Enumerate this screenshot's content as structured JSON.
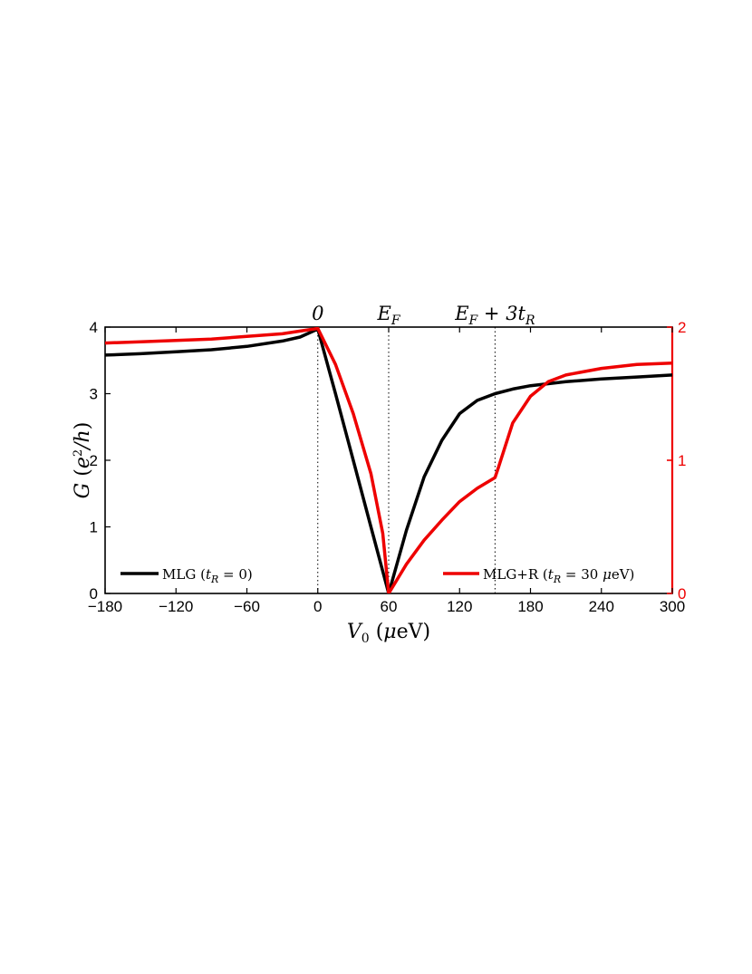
{
  "chart_data": {
    "type": "line",
    "xlabel": "V₀ (μeV)",
    "ylabel_left": "G (e²/h)",
    "xlim": [
      -180,
      300
    ],
    "ylim_left": [
      0,
      4
    ],
    "ylim_right": [
      0,
      2
    ],
    "x_ticks": [
      -180,
      -120,
      -60,
      0,
      60,
      120,
      180,
      240,
      300
    ],
    "x_tick_labels": [
      "−180",
      "−120",
      "−60",
      "0",
      "60",
      "120",
      "180",
      "240",
      "300"
    ],
    "y_left_ticks": [
      0,
      1,
      2,
      3,
      4
    ],
    "y_left_tick_labels": [
      "0",
      "1",
      "2",
      "3",
      "4"
    ],
    "y_right_ticks": [
      0,
      1,
      2
    ],
    "y_right_tick_labels": [
      "0",
      "1",
      "2"
    ],
    "grid": false,
    "annotations": [
      {
        "x": 0,
        "label": "0"
      },
      {
        "x": 60,
        "label": "E_F"
      },
      {
        "x": 150,
        "label": "E_F + 3t_R"
      }
    ],
    "series": [
      {
        "name": "MLG (t_R = 0)",
        "axis": "left",
        "color": "#000000",
        "x": [
          -180,
          -150,
          -120,
          -90,
          -60,
          -30,
          -15,
          0,
          15,
          30,
          45,
          60,
          75,
          90,
          105,
          120,
          135,
          150,
          165,
          180,
          210,
          240,
          270,
          300
        ],
        "y": [
          3.58,
          3.6,
          3.63,
          3.66,
          3.71,
          3.79,
          3.85,
          3.97,
          3.0,
          2.0,
          1.0,
          0.0,
          0.95,
          1.75,
          2.3,
          2.7,
          2.9,
          3.0,
          3.07,
          3.12,
          3.18,
          3.22,
          3.25,
          3.28
        ]
      },
      {
        "name": "MLG+R (t_R = 30 μeV)",
        "axis": "right",
        "color": "#ee0000",
        "x": [
          -180,
          -150,
          -120,
          -90,
          -60,
          -30,
          -15,
          0,
          15,
          30,
          45,
          55,
          60,
          75,
          90,
          105,
          120,
          135,
          150,
          153,
          165,
          180,
          195,
          210,
          240,
          270,
          300
        ],
        "y": [
          1.88,
          1.89,
          1.9,
          1.91,
          1.93,
          1.95,
          1.97,
          1.99,
          1.72,
          1.35,
          0.9,
          0.45,
          0.0,
          0.22,
          0.4,
          0.55,
          0.69,
          0.79,
          0.87,
          0.95,
          1.28,
          1.48,
          1.59,
          1.64,
          1.69,
          1.72,
          1.73
        ]
      }
    ],
    "legend": [
      {
        "label": "MLG (t_R = 0)",
        "placement": "bottom-left",
        "color": "#000000"
      },
      {
        "label": "MLG+R (t_R = 30 μeV)",
        "placement": "bottom-right",
        "color": "#ee0000"
      }
    ],
    "colors": {
      "left_axis": "#000000",
      "right_axis": "#ee0000"
    }
  }
}
